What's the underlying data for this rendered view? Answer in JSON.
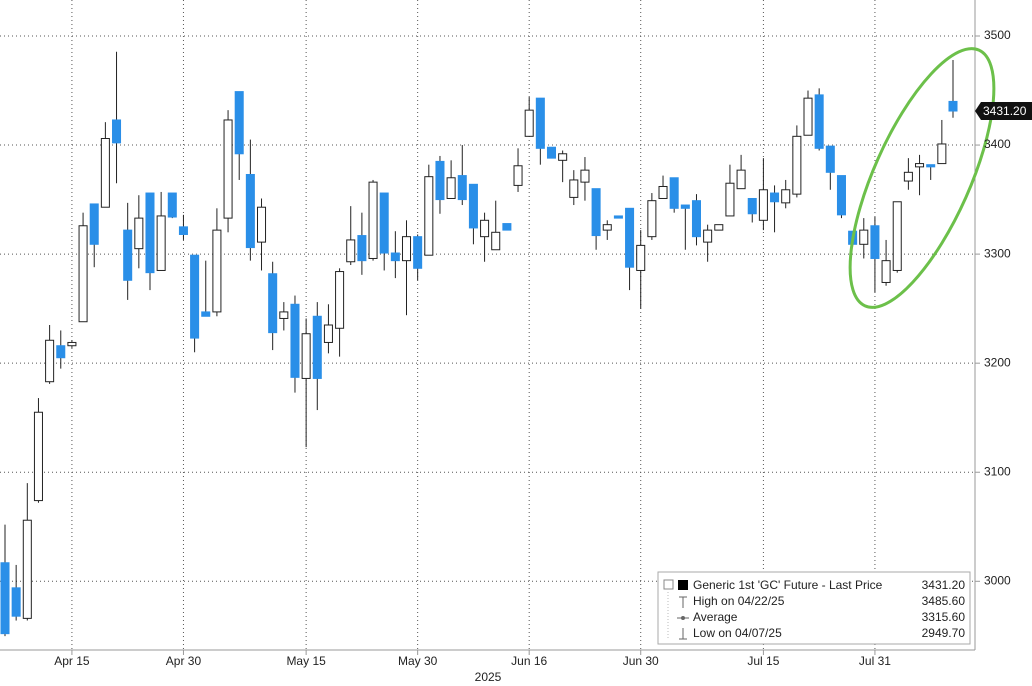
{
  "chart_data": {
    "type": "candlestick",
    "xlabel": "2025",
    "categories": [
      null,
      null,
      null,
      null,
      null,
      null,
      "Apr 15",
      null,
      null,
      null,
      null,
      null,
      null,
      null,
      null,
      null,
      "Apr 30",
      null,
      null,
      null,
      null,
      null,
      null,
      null,
      null,
      null,
      null,
      "May 15",
      null,
      null,
      null,
      null,
      null,
      null,
      null,
      null,
      null,
      "May 30",
      null,
      null,
      null,
      null,
      null,
      null,
      null,
      null,
      null,
      "Jun 16",
      null,
      null,
      null,
      null,
      null,
      null,
      null,
      null,
      null,
      "Jun 30",
      null,
      null,
      null,
      null,
      null,
      null,
      null,
      null,
      null,
      null,
      "Jul 15",
      null,
      null,
      null,
      null,
      null,
      null,
      null,
      null,
      null,
      "Jul 31",
      null,
      null,
      null,
      null,
      null,
      null,
      null
    ],
    "open": [
      3017,
      2994,
      2966,
      3074,
      3183,
      3216,
      3216,
      3238,
      3346,
      3343,
      3423,
      3322,
      3305,
      3356,
      3285,
      3356,
      3325,
      3299,
      3247,
      3247,
      3333,
      3449,
      3373,
      3311,
      3282,
      3241,
      3254,
      3186,
      3243,
      3219,
      3232,
      3293,
      3317,
      3296,
      3356,
      3301,
      3294,
      3316,
      3299,
      3385,
      3351,
      3372,
      3364,
      3316,
      3304,
      3328,
      3363,
      3408,
      3443,
      3398,
      3386,
      3352,
      3366,
      3360,
      3322,
      3335,
      3342,
      3285,
      3316,
      3351,
      3370,
      3345,
      3349,
      3311,
      3322,
      3335,
      3360,
      3351,
      3331,
      3356,
      3347,
      3355,
      3409,
      3446,
      3399,
      3372,
      3321,
      3309,
      3326,
      3274,
      3285,
      3367,
      3380,
      3382,
      3383,
      3440
    ],
    "high": [
      3052,
      3015,
      3090,
      3168,
      3235,
      3230,
      3221,
      3338,
      3346,
      3421,
      3485.6,
      3347,
      3354,
      3356,
      3357,
      3356,
      3336,
      3299,
      3294,
      3342,
      3432,
      3449,
      3405,
      3351,
      3293,
      3256,
      3262,
      3241,
      3256,
      3254,
      3287,
      3344,
      3338,
      3368,
      3356,
      3321,
      3331,
      3318,
      3382,
      3390,
      3386,
      3400,
      3364,
      3338,
      3349,
      3328,
      3397,
      3444,
      3443,
      3398,
      3395,
      3377,
      3389,
      3360,
      3331,
      3335,
      3342,
      3322,
      3356,
      3372,
      3370,
      3345,
      3355,
      3327,
      3327,
      3382,
      3391,
      3351,
      3388,
      3363,
      3368,
      3418,
      3450,
      3452,
      3399,
      3372,
      3321,
      3333,
      3334,
      3313,
      3348,
      3388,
      3391,
      3382,
      3423,
      3478
    ],
    "low": [
      2949.7,
      2964,
      2964,
      3072,
      3181,
      3195,
      3214,
      3238,
      3288,
      3343,
      3365,
      3258,
      3287,
      3267,
      3285,
      3333,
      3313,
      3210,
      3243,
      3243,
      3320,
      3368,
      3294,
      3285,
      3212,
      3230,
      3173,
      3123,
      3157,
      3209,
      3206,
      3290,
      3281,
      3294,
      3285,
      3278,
      3244,
      3276,
      3299,
      3337,
      3351,
      3345,
      3309,
      3293,
      3304,
      3322,
      3357,
      3408,
      3382,
      3388,
      3366,
      3345,
      3349,
      3304,
      3313,
      3333,
      3267,
      3250,
      3313,
      3351,
      3338,
      3304,
      3308,
      3293,
      3322,
      3335,
      3360,
      3329,
      3322,
      3320,
      3342,
      3352,
      3409,
      3395,
      3359,
      3333,
      3307,
      3296,
      3265,
      3271,
      3283,
      3359,
      3354,
      3368,
      3383,
      3425
    ],
    "close": [
      2952,
      2968,
      3056,
      3155,
      3221,
      3205,
      3219,
      3326,
      3309,
      3406,
      3402,
      3276,
      3333,
      3283,
      3335,
      3334,
      3318,
      3223,
      3243,
      3322,
      3423,
      3392,
      3306,
      3343,
      3228,
      3247,
      3187,
      3227,
      3186,
      3235,
      3284,
      3313,
      3294,
      3366,
      3301,
      3294,
      3316,
      3287,
      3371,
      3350,
      3370,
      3350,
      3324,
      3331,
      3320,
      3322,
      3381,
      3432,
      3397,
      3388,
      3392,
      3368,
      3377,
      3317,
      3327,
      3333,
      3288,
      3308,
      3349,
      3362,
      3342,
      3342,
      3316,
      3322,
      3327,
      3365,
      3377,
      3337,
      3359,
      3348,
      3359,
      3408,
      3443,
      3397,
      3375,
      3336,
      3309,
      3322,
      3296,
      3294,
      3348,
      3375,
      3383,
      3380,
      3401,
      3431.2
    ],
    "up_color": "#ffffff",
    "down_color": "#2a8fe8",
    "ylim": [
      2937,
      3533
    ],
    "yticks": [
      3000,
      3100,
      3200,
      3300,
      3400,
      3500
    ],
    "grid": true,
    "last_price": {
      "value": 3431.2,
      "label": "3431.20"
    },
    "legend": [
      {
        "name": "Generic 1st 'GC' Future - Last Price",
        "value": "3431.20"
      },
      {
        "name": "High on 04/22/25",
        "value": "3485.60"
      },
      {
        "name": "Average",
        "value": "3315.60"
      },
      {
        "name": "Low on 04/07/25",
        "value": "2949.70"
      }
    ]
  }
}
